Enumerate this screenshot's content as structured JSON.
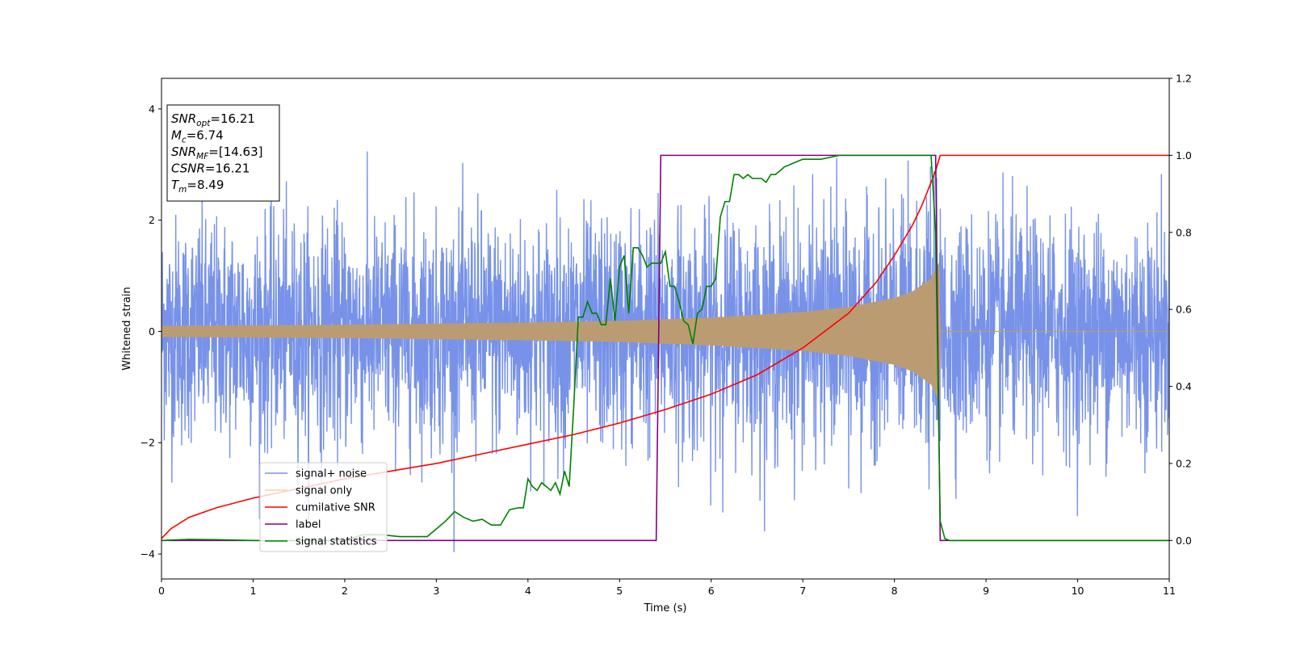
{
  "chart_data": {
    "type": "line",
    "title": "",
    "xlabel": "Time (s)",
    "ylabel": "Whitened strain",
    "xlim": [
      0,
      11
    ],
    "ylim": [
      -4.45,
      4.55
    ],
    "y2lim": [
      -0.1,
      1.2
    ],
    "xticks": [
      "0",
      "1",
      "2",
      "3",
      "4",
      "5",
      "6",
      "7",
      "8",
      "9",
      "10",
      "11"
    ],
    "yticks": [
      "−4",
      "−2",
      "0",
      "2",
      "4"
    ],
    "y2ticks": [
      "0.0",
      "0.2",
      "0.4",
      "0.6",
      "0.8",
      "1.0",
      "1.2"
    ],
    "grid": false,
    "legend_placement": "lower-left",
    "annotation": {
      "lines": [
        {
          "var": "SNR",
          "sub": "opt",
          "value": "=16.21"
        },
        {
          "var": "M",
          "sub": "c",
          "value": "=6.74"
        },
        {
          "var": "SNR",
          "sub": "MF",
          "value": "=[14.63]"
        },
        {
          "var": "CSNR",
          "sub": "",
          "value": "=16.21"
        },
        {
          "var": "T",
          "sub": "m",
          "value": "=8.49"
        }
      ]
    },
    "series": [
      {
        "name": "signal+ noise",
        "axis": "left",
        "color": "#7792e8",
        "noise_sigma": 1.0,
        "merger_time": 8.49
      },
      {
        "name": "signal only",
        "axis": "left",
        "color": "#bb9c72",
        "legend_color": "#fcd599",
        "envelope": {
          "x": [
            0,
            2,
            4,
            5,
            6,
            7,
            7.5,
            8,
            8.2,
            8.4,
            8.49,
            8.5,
            11
          ],
          "y": [
            0.1,
            0.12,
            0.16,
            0.19,
            0.25,
            0.35,
            0.44,
            0.6,
            0.72,
            0.95,
            1.25,
            0,
            0
          ]
        }
      },
      {
        "name": "cumilative SNR",
        "axis": "right",
        "color": "#ff0000",
        "x": [
          0,
          0.1,
          0.3,
          0.6,
          1,
          1.5,
          2,
          2.5,
          3,
          3.5,
          4,
          4.5,
          5,
          5.5,
          6,
          6.5,
          7,
          7.5,
          7.8,
          8,
          8.2,
          8.3,
          8.4,
          8.45,
          8.5,
          11
        ],
        "y": [
          0.005,
          0.03,
          0.06,
          0.085,
          0.11,
          0.135,
          0.16,
          0.18,
          0.2,
          0.225,
          0.25,
          0.275,
          0.305,
          0.34,
          0.38,
          0.43,
          0.5,
          0.59,
          0.67,
          0.74,
          0.82,
          0.87,
          0.93,
          0.96,
          1.0,
          1.0
        ]
      },
      {
        "name": "label",
        "axis": "right",
        "color": "#800080",
        "x": [
          0,
          5.4,
          5.45,
          8.45,
          8.5,
          11
        ],
        "y": [
          0,
          0,
          1,
          1,
          0,
          0
        ]
      },
      {
        "name": "signal statistics",
        "axis": "right",
        "color": "#008000",
        "x": [
          0,
          0.3,
          0.6,
          1,
          1.5,
          2,
          2.2,
          2.4,
          2.6,
          2.8,
          2.9,
          3.0,
          3.1,
          3.2,
          3.3,
          3.4,
          3.5,
          3.6,
          3.7,
          3.8,
          3.9,
          3.95,
          4.0,
          4.05,
          4.1,
          4.15,
          4.2,
          4.25,
          4.3,
          4.35,
          4.4,
          4.45,
          4.5,
          4.55,
          4.6,
          4.65,
          4.7,
          4.75,
          4.8,
          4.85,
          4.9,
          4.95,
          5.0,
          5.05,
          5.1,
          5.15,
          5.2,
          5.25,
          5.3,
          5.35,
          5.4,
          5.45,
          5.5,
          5.55,
          5.6,
          5.65,
          5.7,
          5.75,
          5.8,
          5.85,
          5.9,
          5.95,
          6.0,
          6.05,
          6.1,
          6.15,
          6.2,
          6.25,
          6.3,
          6.35,
          6.4,
          6.45,
          6.5,
          6.55,
          6.6,
          6.65,
          6.7,
          6.75,
          6.8,
          6.9,
          7.0,
          7.1,
          7.2,
          7.4,
          7.6,
          7.8,
          8.0,
          8.2,
          8.35,
          8.4,
          8.45,
          8.5,
          8.55,
          8.6,
          9,
          10,
          11
        ],
        "y": [
          0.0,
          0.003,
          0.002,
          0.0,
          0.0,
          0.0,
          0.015,
          0.015,
          0.01,
          0.01,
          0.01,
          0.03,
          0.05,
          0.075,
          0.06,
          0.05,
          0.055,
          0.04,
          0.04,
          0.08,
          0.085,
          0.085,
          0.16,
          0.14,
          0.13,
          0.15,
          0.14,
          0.13,
          0.15,
          0.12,
          0.18,
          0.14,
          0.35,
          0.58,
          0.58,
          0.62,
          0.59,
          0.59,
          0.56,
          0.56,
          0.68,
          0.57,
          0.71,
          0.74,
          0.59,
          0.76,
          0.76,
          0.74,
          0.71,
          0.72,
          0.72,
          0.72,
          0.75,
          0.66,
          0.66,
          0.62,
          0.57,
          0.56,
          0.51,
          0.59,
          0.6,
          0.66,
          0.66,
          0.68,
          0.84,
          0.88,
          0.88,
          0.95,
          0.95,
          0.94,
          0.95,
          0.94,
          0.94,
          0.94,
          0.93,
          0.95,
          0.95,
          0.96,
          0.97,
          0.98,
          0.99,
          0.99,
          0.99,
          1.0,
          1.0,
          1.0,
          1.0,
          1.0,
          1.0,
          1.0,
          0.8,
          0.05,
          0.005,
          0.0,
          0.0,
          0.0,
          0.0
        ]
      }
    ]
  }
}
